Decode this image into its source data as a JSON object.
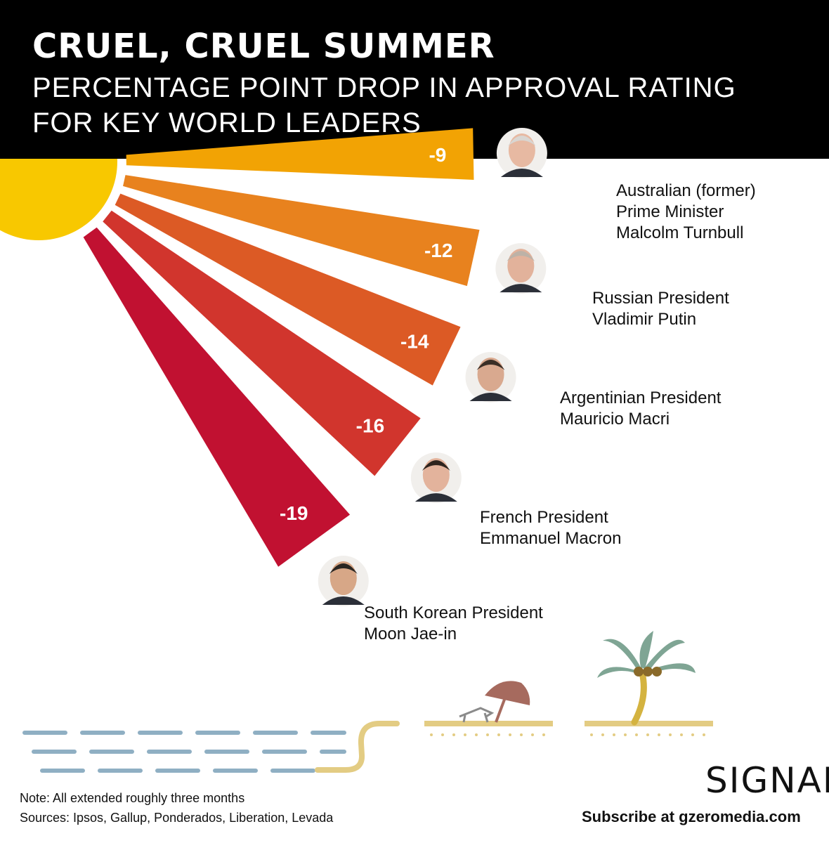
{
  "header": {
    "title": "CRUEL, CRUEL SUMMER",
    "subtitle_line1": "PERCENTAGE POINT DROP IN APPROVAL RATING",
    "subtitle_line2": "FOR KEY WORLD LEADERS"
  },
  "chart_data": {
    "type": "bar",
    "title": "CRUEL, CRUEL SUMMER",
    "subtitle": "PERCENTAGE POINT DROP IN APPROVAL RATING FOR KEY WORLD LEADERS",
    "categories": [
      "Australian (former) Prime Minister Malcolm Turnbull",
      "Russian President Vladimir Putin",
      "Argentinian President Mauricio Macri",
      "French President Emmanuel Macron",
      "South Korean President Moon Jae-in"
    ],
    "values": [
      -9,
      -12,
      -14,
      -16,
      -19
    ],
    "labels": [
      "-9",
      "-12",
      "-14",
      "-16",
      "-19"
    ],
    "leader_label_lines": [
      [
        "Australian (former)",
        "Prime Minister",
        "Malcolm Turnbull"
      ],
      [
        "Russian President",
        "Vladimir Putin"
      ],
      [
        "Argentinian President",
        "Mauricio Macri"
      ],
      [
        "French President",
        "Emmanuel Macron"
      ],
      [
        "South Korean President",
        "Moon Jae-in"
      ]
    ],
    "colors": [
      "#F2A304",
      "#E8821E",
      "#DC5A25",
      "#D1352D",
      "#C11131"
    ],
    "grid": false,
    "legend": "none"
  },
  "decor": {
    "sun_color": "#F8C800",
    "water_color": "#8FAFC3",
    "sand_color": "#E3CC83",
    "palm_leaf_color": "#7FA594",
    "umbrella_color": "#A66A5E"
  },
  "footer": {
    "note": "Note: All extended roughly three months",
    "sources": "Sources: Ipsos, Gallup, Ponderados, Liberation, Levada",
    "subscribe": "Subscribe at gzeromedia.com",
    "logo": "SIGNAL"
  }
}
